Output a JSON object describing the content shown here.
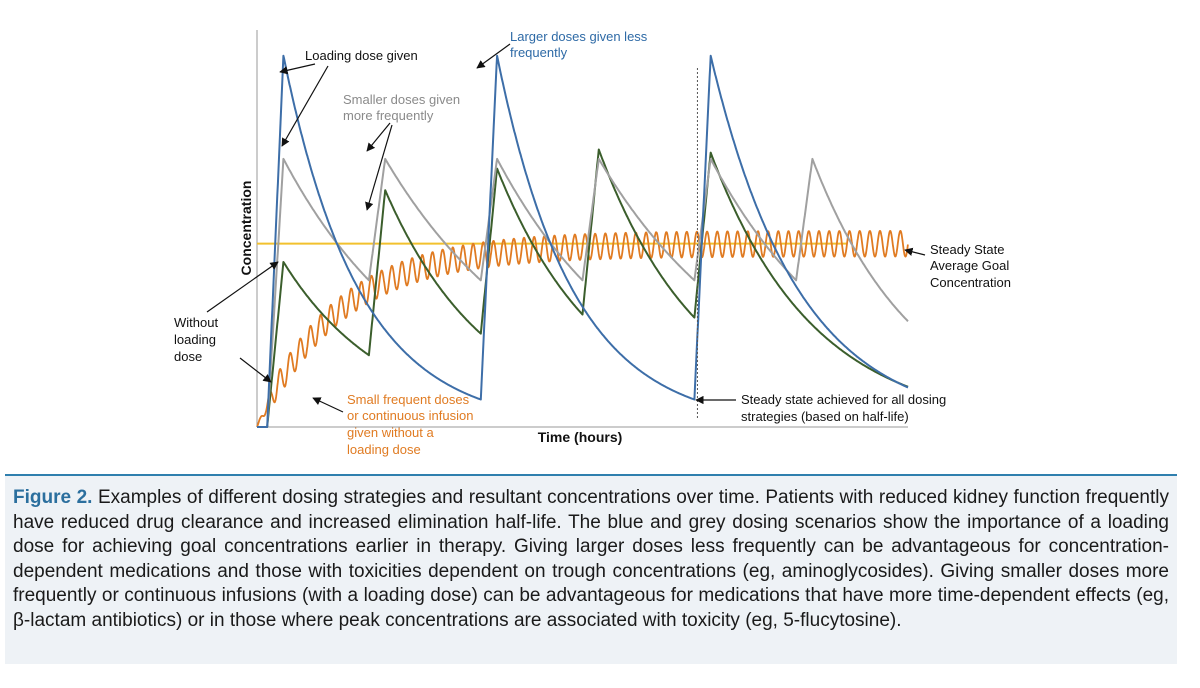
{
  "chart_data": {
    "type": "line",
    "xlabel": "Time (hours)",
    "ylabel": "Concentration",
    "grid": false,
    "series": [
      {
        "key": "blue",
        "color": "#3d6ea8",
        "dose_times": [
          1,
          22,
          43
        ],
        "peak": 8.1,
        "trough": 0.6,
        "rise": 1.6,
        "half_life": 6.0,
        "end": 64
      },
      {
        "key": "grey",
        "color": "#a0a0a0",
        "dose_times": [
          1,
          11,
          22,
          32,
          43,
          53
        ],
        "peak": 5.85,
        "trough": 3.2,
        "rise": 1.6,
        "half_life": 7.0,
        "end": 64
      },
      {
        "key": "green",
        "color": "#3b5e2c",
        "dose_times": [
          1,
          11,
          22,
          32,
          43
        ],
        "start": 0.0,
        "amounts": [
          3.6,
          3.6,
          3.6,
          3.6,
          3.6
        ],
        "rise": 1.6,
        "half_life": 7.0,
        "end": 64
      },
      {
        "key": "orange",
        "color": "#e07b22",
        "kind": "infusion",
        "steady": 4.0,
        "tau": 20,
        "amplitude": 0.28,
        "period": 1.0,
        "end": 64
      }
    ],
    "goal_concentration": 4.0,
    "goal_color": "#f2c12e",
    "steady_state_time": 43.3,
    "annotations": {
      "loading_dose": "Loading dose given",
      "larger_doses": [
        "Larger doses given less",
        "frequently"
      ],
      "smaller_doses": [
        "Smaller doses given",
        "more frequently"
      ],
      "steady_goal": [
        "Steady State",
        "Average Goal",
        "Concentration"
      ],
      "without_loading": [
        "Without",
        "loading",
        "dose"
      ],
      "small_frequent": [
        "Small frequent doses",
        "or continuous infusion",
        "given without a",
        "loading dose"
      ],
      "steady_achieved": [
        "Steady state achieved for all dosing",
        "strategies (based on half-life)"
      ]
    }
  },
  "caption": {
    "label": "Figure 2.",
    "text": " Examples of different dosing strategies and resultant concentrations over time. Patients with reduced kidney function frequently have reduced drug clearance and increased elimination half-life. The blue and grey dosing scenarios show the importance of a loading dose for achieving goal concentrations earlier in therapy. Giving larger doses less frequently can be advantageous for concentration-dependent medications and those with toxicities dependent on trough concentrations (eg, aminoglycosides). Giving smaller doses more frequently or continuous infusions (with a loading dose) can be advantageous for medications that have more time-dependent effects (eg, β-lactam antibiotics) or in those where peak concentrations are associated with toxicity (eg, 5-flucytosine)."
  }
}
